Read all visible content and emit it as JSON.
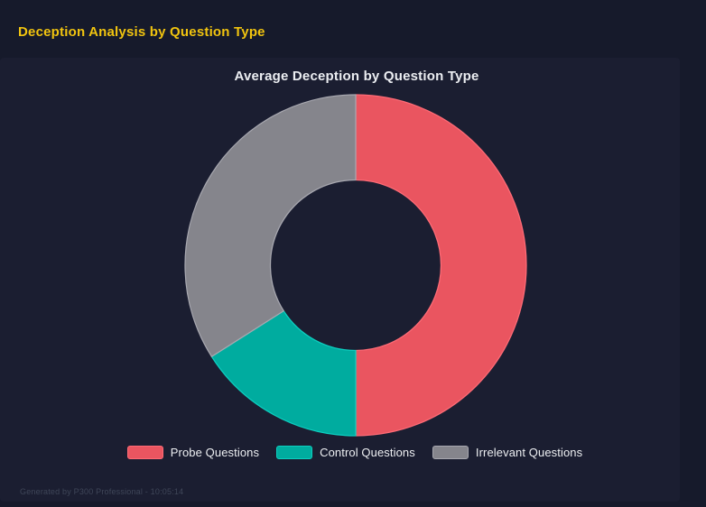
{
  "page": {
    "title": "Deception Analysis by Question Type",
    "footer": "Generated by P300 Professional - 10:05:14",
    "background_color": "#161A2B",
    "panel_background_color": "#1B1E31",
    "title_color": "#F1C40F",
    "footer_color": "#3F4658"
  },
  "chart_data": {
    "type": "pie",
    "variant": "doughnut",
    "title": "Average Deception by Question Type",
    "labels": [
      "Probe Questions",
      "Control Questions",
      "Irrelevant Questions"
    ],
    "values_percent": [
      50,
      16,
      34
    ],
    "colors": [
      "#EA5560",
      "#00AC9F",
      "#85858C"
    ],
    "border_colors": [
      "#FF6B76",
      "#0CCFC0",
      "#A8A8B0"
    ],
    "legend_position": "bottom",
    "start_angle_deg": 0,
    "direction": "clockwise",
    "inner_radius_ratio": 0.5,
    "grid": false
  }
}
